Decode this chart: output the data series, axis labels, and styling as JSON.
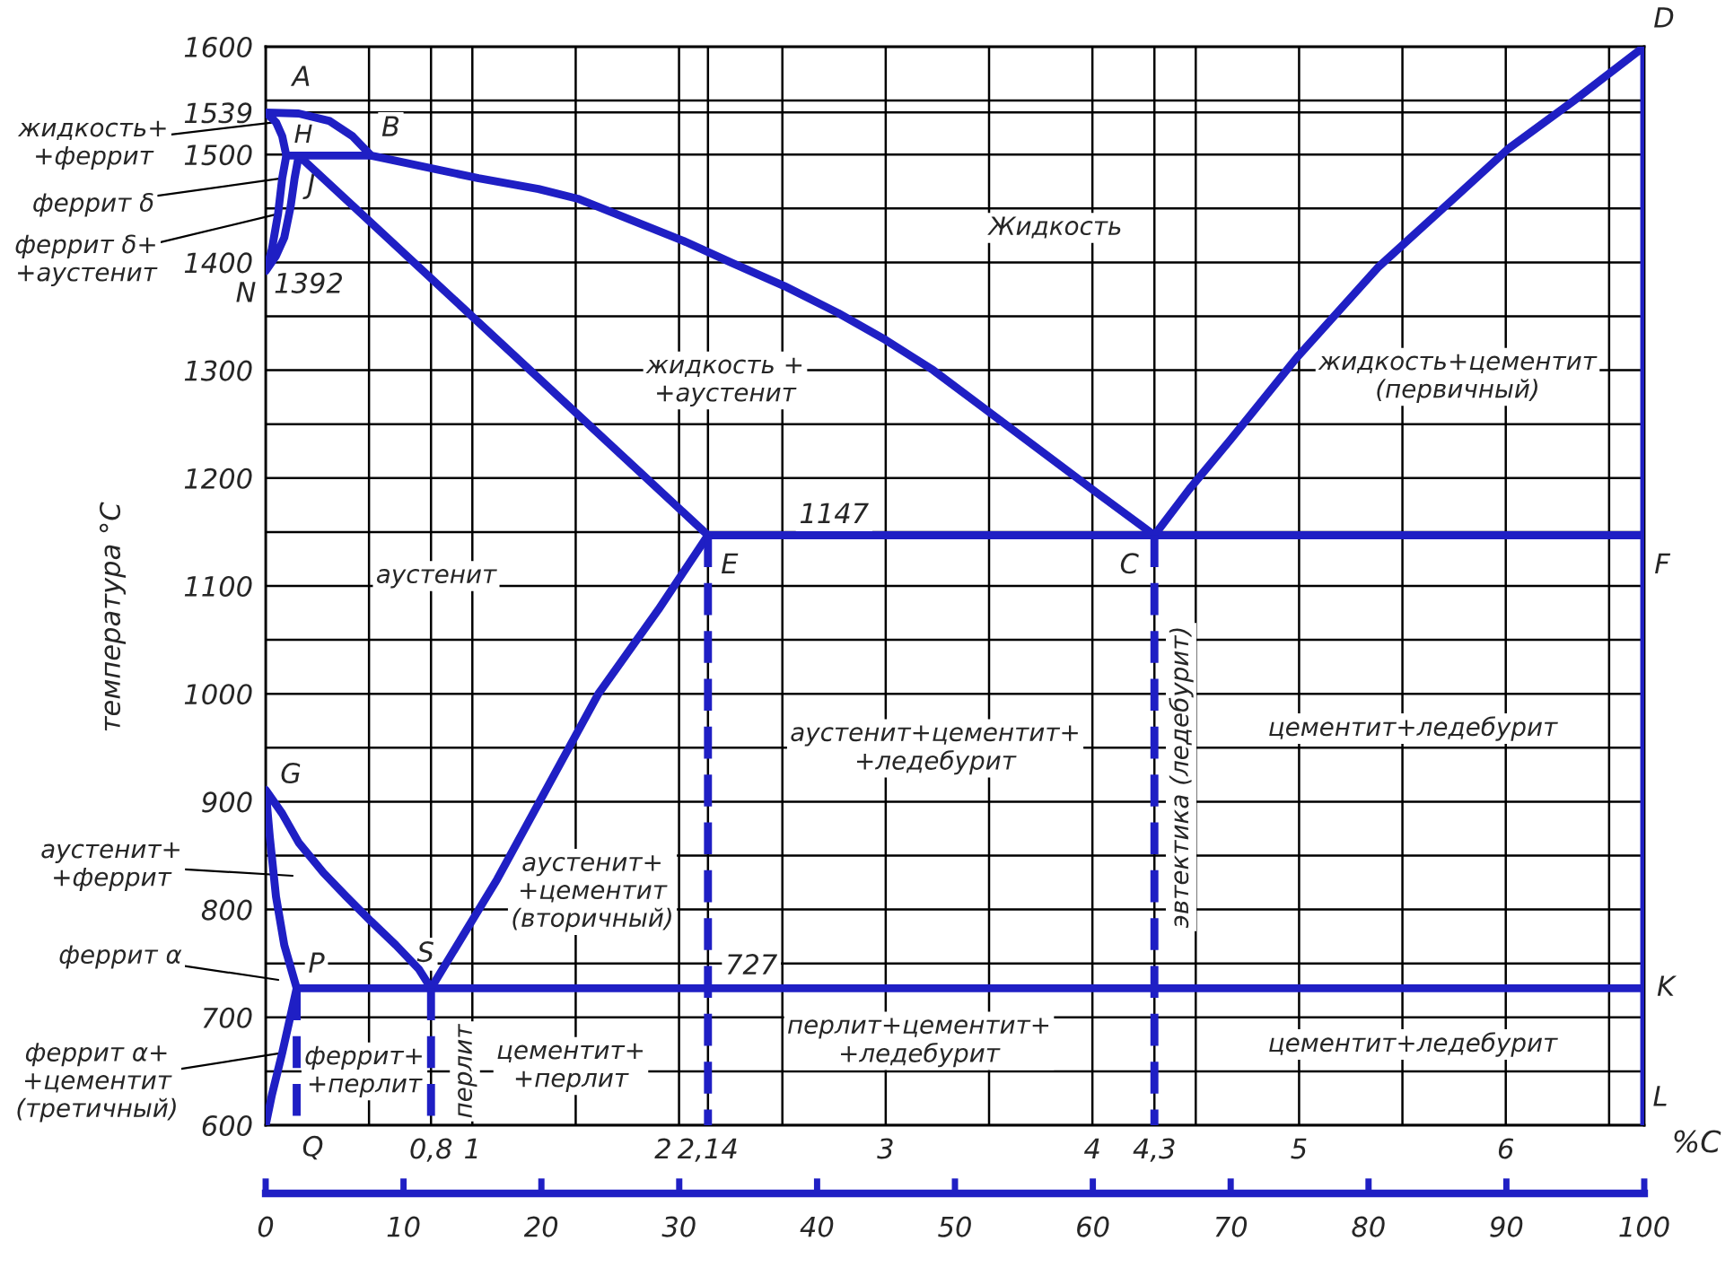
{
  "chart_data": {
    "type": "line",
    "xlabel": "%C",
    "ylabel": "температура °C",
    "xlim": [
      0,
      6.67
    ],
    "ylim": [
      600,
      1600
    ],
    "xticks": [
      {
        "value": 0,
        "label": null
      },
      {
        "value": 0.5,
        "label": null
      },
      {
        "value": 0.8,
        "label": "0,8"
      },
      1,
      {
        "value": 1.5,
        "label": null
      },
      2,
      {
        "value": 2.14,
        "label": "2,14"
      },
      {
        "value": 2.5,
        "label": null
      },
      3,
      {
        "value": 3.5,
        "label": null
      },
      4,
      {
        "value": 4.3,
        "label": "4,3"
      },
      {
        "value": 4.5,
        "label": null
      },
      5,
      {
        "value": 5.5,
        "label": null
      },
      6,
      {
        "value": 6.5,
        "label": null
      }
    ],
    "yticks": [
      600,
      {
        "value": 650,
        "label": null
      },
      700,
      {
        "value": 750,
        "label": null
      },
      800,
      {
        "value": 850,
        "label": null
      },
      900,
      {
        "value": 950,
        "label": null
      },
      1000,
      {
        "value": 1050,
        "label": null
      },
      1100,
      {
        "value": 1150,
        "label": null
      },
      1200,
      {
        "value": 1250,
        "label": null
      },
      1300,
      {
        "value": 1350,
        "label": null
      },
      1400,
      {
        "value": 1450,
        "label": null
      },
      1500,
      1539,
      {
        "value": 1550,
        "label": null
      },
      1600
    ],
    "x2lim": [
      0,
      100
    ],
    "x2ticks": [
      0,
      10,
      20,
      30,
      40,
      50,
      60,
      70,
      80,
      90,
      100
    ],
    "grid": true,
    "line_style": "solid",
    "series": [
      {
        "color": "#1f1fc4",
        "x": [
          6.67,
          6.67,
          6.33,
          6.01,
          5.77,
          5.38,
          4.99,
          4.67,
          4.47,
          4.3,
          4.01,
          3.46,
          3.23,
          3.0,
          2.77,
          2.51,
          2.25,
          2.02,
          1.51,
          1.32,
          1.03,
          0.51,
          0.42,
          0.31,
          0.16,
          0,
          0.05,
          0.08,
          0.1,
          0.08,
          0.06,
          0.03,
          0,
          0.05,
          0.09,
          0.12,
          0.14,
          0.16,
          2.14,
          6.67
        ],
        "values": [
          600,
          1600,
          1550,
          1505,
          1463,
          1395,
          1312,
          1236,
          1190,
          1147,
          1188,
          1267,
          1300,
          1328,
          1353,
          1378,
          1400,
          1420,
          1459,
          1468,
          1478,
          1499,
          1517,
          1531,
          1538,
          1539,
          1530,
          1517,
          1499,
          1478,
          1445,
          1412,
          1392,
          1406,
          1423,
          1451,
          1478,
          1499,
          1147,
          1147
        ]
      },
      {
        "color": "#1f1fc4",
        "x": [
          0.1,
          0.51
        ],
        "values": [
          1499,
          1499
        ]
      },
      {
        "color": "#1f1fc4",
        "x": [
          0,
          0.03,
          0.08,
          0.12,
          0.15,
          0.09,
          0.05,
          0.02,
          0,
          0.08,
          0.16,
          0.28,
          0.39,
          0.51,
          0.63,
          0.74,
          0.8,
          1.12,
          1.61,
          1.9,
          2.14
        ],
        "values": [
          600,
          628,
          667,
          701,
          727,
          767,
          812,
          867,
          911,
          889,
          862,
          834,
          812,
          789,
          767,
          745,
          727,
          828,
          1000,
          1078,
          1147
        ]
      },
      {
        "color": "#1f1fc4",
        "x": [
          0.15,
          6.67
        ],
        "values": [
          727,
          727
        ]
      },
      {
        "color": "#1f1fc4",
        "line_style": "dashed",
        "x": [
          0.15,
          0.15
        ],
        "values": [
          727,
          600
        ]
      },
      {
        "color": "#1f1fc4",
        "line_style": "dashed",
        "x": [
          0.8,
          0.8
        ],
        "values": [
          727,
          600
        ]
      },
      {
        "color": "#1f1fc4",
        "line_style": "dashed",
        "x": [
          2.14,
          2.14
        ],
        "values": [
          1147,
          600
        ]
      },
      {
        "color": "#1f1fc4",
        "line_style": "dashed",
        "x": [
          4.3,
          4.3
        ],
        "values": [
          1147,
          600
        ]
      }
    ],
    "annotations": [
      {
        "text": "A",
        "x": 0,
        "y": 1539
      },
      {
        "text": "H",
        "x": 0.1,
        "y": 1499
      },
      {
        "text": "B",
        "x": 0.51,
        "y": 1499
      },
      {
        "text": "J",
        "x": 0.16,
        "y": 1499
      },
      {
        "text": "N",
        "x": 0,
        "y": 1392
      },
      {
        "text": "1392",
        "x": 0,
        "y": 1392
      },
      {
        "text": "D",
        "x": 6.67,
        "y": 1600
      },
      {
        "text": "E",
        "x": 2.14,
        "y": 1147
      },
      {
        "text": "C",
        "x": 4.3,
        "y": 1147
      },
      {
        "text": "F",
        "x": 6.67,
        "y": 1147
      },
      {
        "text": "1147",
        "x": 2.75,
        "y": 1147
      },
      {
        "text": "G",
        "x": 0,
        "y": 911
      },
      {
        "text": "P",
        "x": 0.15,
        "y": 727
      },
      {
        "text": "S",
        "x": 0.8,
        "y": 727
      },
      {
        "text": "727",
        "x": 2.35,
        "y": 727
      },
      {
        "text": "K",
        "x": 6.67,
        "y": 727
      },
      {
        "text": "L",
        "x": 6.67,
        "y": 600
      },
      {
        "text": "Q",
        "x": 0.15,
        "y": 600
      },
      "Жидкость",
      "жидкость +\n+аустенит",
      "жидкость+цементит\n(первичный)",
      "аустенит",
      "аустенит+цементит+\n+ледебурит",
      "эвтектика (ледебурит)",
      "цементит+ледебурит",
      "аустенит+\n+цементит\n(вторичный)",
      "перлит+цементит+\n+ледебурит",
      "цементит+ледебурит",
      "феррит+\n+перлит",
      "перлит",
      "цементит+\n+перлит",
      {
        "text": "жидкость+\n+феррит",
        "x": 0.05,
        "y": 1530
      },
      {
        "text": "феррит δ",
        "x": 0.08,
        "y": 1478
      },
      {
        "text": "феррит δ+\n+аустенит",
        "x": 0.06,
        "y": 1445
      },
      "аустенит+\n+феррит",
      "феррит α",
      {
        "text": "феррит α+\n+цементит\n(третичный)",
        "x": 0.08,
        "y": 667
      }
    ]
  }
}
